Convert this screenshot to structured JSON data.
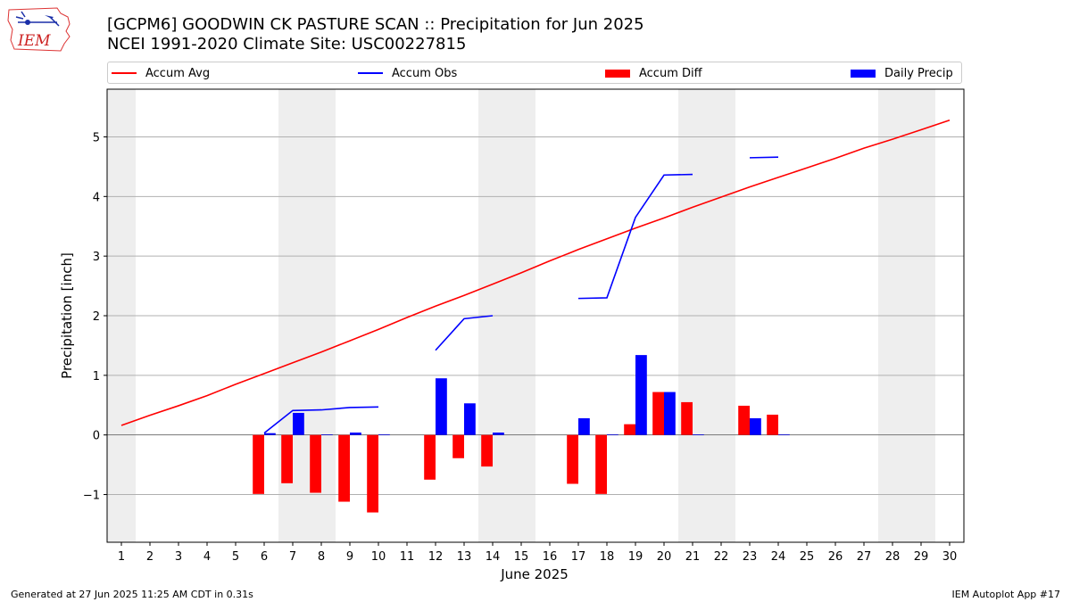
{
  "header": {
    "logo_text": "IEM",
    "title_line1": "[GCPM6] GOODWIN CK PASTURE SCAN :: Precipitation for Jun 2025",
    "title_line2": "NCEI 1991-2020 Climate Site: USC00227815"
  },
  "footer": {
    "generated": "Generated at 27 Jun 2025 11:25 AM CDT in 0.31s",
    "app": "IEM Autoplot App #17"
  },
  "colors": {
    "accum_avg": "#ff0000",
    "accum_obs": "#0000ff",
    "accum_diff": "#ff0000",
    "daily_precip": "#0000ff",
    "weekend_shade": "#eeeeee",
    "grid": "#b0b0b0"
  },
  "chart_data": {
    "type": "bar",
    "xlabel": "June 2025",
    "ylabel": "Precipitation [inch]",
    "xlim": [
      0.5,
      30.5
    ],
    "ylim": [
      -1.8,
      5.8
    ],
    "x_ticks": [
      1,
      2,
      3,
      4,
      5,
      6,
      7,
      8,
      9,
      10,
      11,
      12,
      13,
      14,
      15,
      16,
      17,
      18,
      19,
      20,
      21,
      22,
      23,
      24,
      25,
      26,
      27,
      28,
      29,
      30
    ],
    "y_ticks": [
      -1,
      0,
      1,
      2,
      3,
      4,
      5
    ],
    "y_tick_labels": [
      "−1",
      "0",
      "1",
      "2",
      "3",
      "4",
      "5"
    ],
    "grid": true,
    "legend_position": "top",
    "shaded_weekends": [
      [
        0.5,
        1.5
      ],
      [
        6.5,
        8.5
      ],
      [
        13.5,
        15.5
      ],
      [
        20.5,
        22.5
      ],
      [
        27.5,
        29.5
      ]
    ],
    "legend": [
      "Accum Avg",
      "Accum Obs",
      "Accum Diff",
      "Daily Precip"
    ],
    "series": [
      {
        "name": "Accum Avg",
        "kind": "line",
        "x": [
          1,
          2,
          3,
          4,
          5,
          6,
          7,
          8,
          9,
          10,
          11,
          12,
          13,
          14,
          15,
          16,
          17,
          18,
          19,
          20,
          21,
          22,
          23,
          24,
          25,
          26,
          27,
          28,
          29,
          30
        ],
        "values": [
          0.16,
          0.33,
          0.49,
          0.66,
          0.85,
          1.03,
          1.21,
          1.39,
          1.58,
          1.77,
          1.97,
          2.16,
          2.34,
          2.53,
          2.72,
          2.92,
          3.11,
          3.29,
          3.47,
          3.64,
          3.82,
          3.99,
          4.16,
          4.32,
          4.48,
          4.64,
          4.81,
          4.96,
          5.12,
          5.28
        ]
      },
      {
        "name": "Accum Obs",
        "kind": "line",
        "x": [
          6,
          7,
          8,
          9,
          10,
          11,
          12,
          13,
          14,
          15,
          16,
          17,
          18,
          19,
          20,
          21,
          22,
          23,
          24,
          25,
          26,
          27,
          28,
          29,
          30
        ],
        "values": [
          0.03,
          0.41,
          0.42,
          0.46,
          0.47,
          null,
          1.42,
          1.95,
          2.0,
          null,
          null,
          2.29,
          2.3,
          3.65,
          4.36,
          4.37,
          null,
          4.65,
          4.66,
          null,
          null,
          null,
          null,
          null,
          null
        ]
      },
      {
        "name": "Accum Diff",
        "kind": "bar",
        "x": [
          6,
          7,
          8,
          9,
          10,
          12,
          13,
          14,
          17,
          18,
          19,
          20,
          21,
          23,
          24
        ],
        "values": [
          -0.99,
          -0.81,
          -0.97,
          -1.12,
          -1.3,
          -0.75,
          -0.39,
          -0.53,
          -0.82,
          -0.99,
          0.18,
          0.72,
          0.55,
          0.49,
          0.34
        ]
      },
      {
        "name": "Daily Precip",
        "kind": "bar",
        "x": [
          6,
          7,
          8,
          9,
          10,
          12,
          13,
          14,
          17,
          18,
          19,
          20,
          21,
          23,
          24
        ],
        "values": [
          0.03,
          0.37,
          0.01,
          0.04,
          0.01,
          0.95,
          0.53,
          0.04,
          0.28,
          0.01,
          1.34,
          0.72,
          0.01,
          0.28,
          0.01
        ]
      }
    ]
  }
}
